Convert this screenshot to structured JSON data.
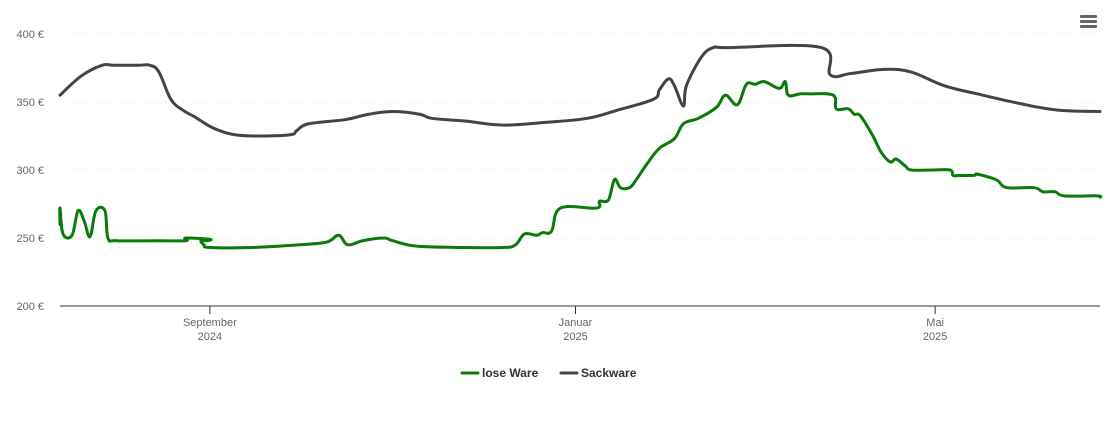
{
  "chart_data": {
    "type": "line",
    "title": "",
    "xlabel": "",
    "ylabel": "",
    "ylim": [
      200,
      400
    ],
    "y_ticks": [
      "200 €",
      "250 €",
      "300 €",
      "350 €",
      "400 €"
    ],
    "y_tick_values": [
      200,
      250,
      300,
      350,
      400
    ],
    "x_range": [
      "2024-07-13",
      "2025-06-25"
    ],
    "x_ticks": [
      {
        "date": "2024-09-01",
        "month": "September",
        "year": "2024"
      },
      {
        "date": "2025-01-01",
        "month": "Januar",
        "year": "2025"
      },
      {
        "date": "2025-05-01",
        "month": "Mai",
        "year": "2025"
      }
    ],
    "grid": true,
    "legend_position": "bottom-center",
    "series": [
      {
        "name": "lose Ware",
        "color": "#0a7a0a",
        "points": [
          [
            "2024-07-13",
            260
          ],
          [
            "2024-07-13",
            272
          ],
          [
            "2024-07-14",
            253
          ],
          [
            "2024-07-17",
            252
          ],
          [
            "2024-07-19",
            270
          ],
          [
            "2024-07-21",
            263
          ],
          [
            "2024-07-23",
            251
          ],
          [
            "2024-07-25",
            270
          ],
          [
            "2024-07-28",
            270
          ],
          [
            "2024-07-29",
            250
          ],
          [
            "2024-08-01",
            248
          ],
          [
            "2024-08-15",
            248
          ],
          [
            "2024-08-24",
            248
          ],
          [
            "2024-08-24",
            250
          ],
          [
            "2024-09-01",
            249
          ],
          [
            "2024-08-31",
            248
          ],
          [
            "2024-08-29",
            248
          ],
          [
            "2024-08-30",
            245
          ],
          [
            "2024-09-01",
            243
          ],
          [
            "2024-09-15",
            243
          ],
          [
            "2024-10-01",
            245
          ],
          [
            "2024-10-10",
            247
          ],
          [
            "2024-10-14",
            252
          ],
          [
            "2024-10-17",
            245
          ],
          [
            "2024-10-22",
            248
          ],
          [
            "2024-10-29",
            250
          ],
          [
            "2024-11-01",
            248
          ],
          [
            "2024-11-09",
            244
          ],
          [
            "2024-11-25",
            243
          ],
          [
            "2024-12-08",
            243
          ],
          [
            "2024-12-12",
            245
          ],
          [
            "2024-12-15",
            253
          ],
          [
            "2024-12-19",
            252
          ],
          [
            "2024-12-21",
            254
          ],
          [
            "2024-12-24",
            255
          ],
          [
            "2024-12-27",
            272
          ],
          [
            "2025-01-08",
            272
          ],
          [
            "2025-01-09",
            277
          ],
          [
            "2025-01-12",
            278
          ],
          [
            "2025-01-14",
            293
          ],
          [
            "2025-01-16",
            287
          ],
          [
            "2025-01-19",
            287
          ],
          [
            "2025-01-21",
            292
          ],
          [
            "2025-01-25",
            305
          ],
          [
            "2025-01-29",
            316
          ],
          [
            "2025-02-03",
            323
          ],
          [
            "2025-02-06",
            334
          ],
          [
            "2025-02-11",
            338
          ],
          [
            "2025-02-17",
            346
          ],
          [
            "2025-02-20",
            355
          ],
          [
            "2025-02-24",
            348
          ],
          [
            "2025-02-27",
            363
          ],
          [
            "2025-03-02",
            363
          ],
          [
            "2025-03-05",
            365
          ],
          [
            "2025-03-10",
            360
          ],
          [
            "2025-03-12",
            365
          ],
          [
            "2025-03-13",
            355
          ],
          [
            "2025-03-17",
            356
          ],
          [
            "2025-03-20",
            356
          ],
          [
            "2025-03-28",
            355
          ],
          [
            "2025-03-29",
            345
          ],
          [
            "2025-04-02",
            345
          ],
          [
            "2025-04-04",
            341
          ],
          [
            "2025-04-06",
            340
          ],
          [
            "2025-04-10",
            326
          ],
          [
            "2025-04-13",
            313
          ],
          [
            "2025-04-16",
            306
          ],
          [
            "2025-04-18",
            308
          ],
          [
            "2025-04-21",
            303
          ],
          [
            "2025-04-23",
            300
          ],
          [
            "2025-04-30",
            300
          ],
          [
            "2025-05-06",
            300
          ],
          [
            "2025-05-07",
            296
          ],
          [
            "2025-05-09",
            296
          ],
          [
            "2025-05-14",
            296
          ],
          [
            "2025-05-15",
            297
          ],
          [
            "2025-05-20",
            294
          ],
          [
            "2025-05-22",
            292
          ],
          [
            "2025-05-25",
            287
          ],
          [
            "2025-06-03",
            287
          ],
          [
            "2025-06-06",
            284
          ],
          [
            "2025-06-10",
            284
          ],
          [
            "2025-06-13",
            281
          ],
          [
            "2025-06-24",
            281
          ],
          [
            "2025-06-25",
            280
          ]
        ]
      },
      {
        "name": "Sackware",
        "color": "#444444",
        "points": [
          [
            "2024-07-13",
            355
          ],
          [
            "2024-07-20",
            369
          ],
          [
            "2024-07-27",
            377
          ],
          [
            "2024-07-31",
            377
          ],
          [
            "2024-08-08",
            377
          ],
          [
            "2024-08-12",
            377
          ],
          [
            "2024-08-15",
            372
          ],
          [
            "2024-08-19",
            352
          ],
          [
            "2024-08-23",
            344
          ],
          [
            "2024-08-27",
            339
          ],
          [
            "2024-09-02",
            331
          ],
          [
            "2024-09-09",
            326
          ],
          [
            "2024-09-18",
            325
          ],
          [
            "2024-09-28",
            326
          ],
          [
            "2024-09-30",
            329
          ],
          [
            "2024-10-04",
            334
          ],
          [
            "2024-10-16",
            337
          ],
          [
            "2024-10-24",
            341
          ],
          [
            "2024-11-01",
            343
          ],
          [
            "2024-11-10",
            341
          ],
          [
            "2024-11-14",
            338
          ],
          [
            "2024-11-25",
            336
          ],
          [
            "2024-12-08",
            333
          ],
          [
            "2024-12-22",
            335
          ],
          [
            "2025-01-05",
            338
          ],
          [
            "2025-01-15",
            344
          ],
          [
            "2025-01-27",
            352
          ],
          [
            "2025-01-29",
            359
          ],
          [
            "2025-02-01",
            367
          ],
          [
            "2025-02-03",
            362
          ],
          [
            "2025-02-06",
            347
          ],
          [
            "2025-02-07",
            362
          ],
          [
            "2025-02-12",
            383
          ],
          [
            "2025-02-16",
            390
          ],
          [
            "2025-02-21",
            390
          ],
          [
            "2025-03-24",
            390
          ],
          [
            "2025-03-27",
            370
          ],
          [
            "2025-04-03",
            371
          ],
          [
            "2025-04-14",
            374
          ],
          [
            "2025-04-23",
            372
          ],
          [
            "2025-05-04",
            362
          ],
          [
            "2025-05-15",
            356
          ],
          [
            "2025-05-29",
            349
          ],
          [
            "2025-06-11",
            344
          ],
          [
            "2025-06-25",
            343
          ]
        ]
      }
    ]
  },
  "colors": {
    "axis": "#333333",
    "grid": "#e6e6e6",
    "tick_text": "#666666"
  },
  "icons": {
    "menu": "hamburger-menu-icon"
  }
}
